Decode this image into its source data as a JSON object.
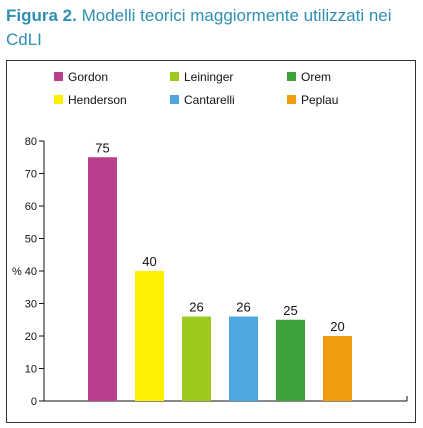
{
  "caption": {
    "label": "Figura 2.",
    "text": "Modelli teorici maggiormente utilizzati nei CdLI"
  },
  "chart_data": {
    "type": "bar",
    "categories": [
      "Gordon",
      "Henderson",
      "Leininger",
      "Cantarelli",
      "Orem",
      "Peplau"
    ],
    "values": [
      75,
      40,
      26,
      26,
      25,
      20
    ],
    "colors": [
      "#b93f8e",
      "#fdf000",
      "#9cc91c",
      "#4ea8df",
      "#3ea33a",
      "#f19b10"
    ],
    "ylabel": "%",
    "ylim": [
      0,
      80
    ],
    "yticks": [
      0,
      10,
      20,
      30,
      40,
      50,
      60,
      70,
      80
    ],
    "legend": [
      {
        "name": "Gordon",
        "color": "#b93f8e"
      },
      {
        "name": "Leininger",
        "color": "#9cc91c"
      },
      {
        "name": "Orem",
        "color": "#3ea33a"
      },
      {
        "name": "Henderson",
        "color": "#fdf000"
      },
      {
        "name": "Cantarelli",
        "color": "#4ea8df"
      },
      {
        "name": "Peplau",
        "color": "#f19b10"
      }
    ],
    "legend_position": "top",
    "grid": false
  }
}
